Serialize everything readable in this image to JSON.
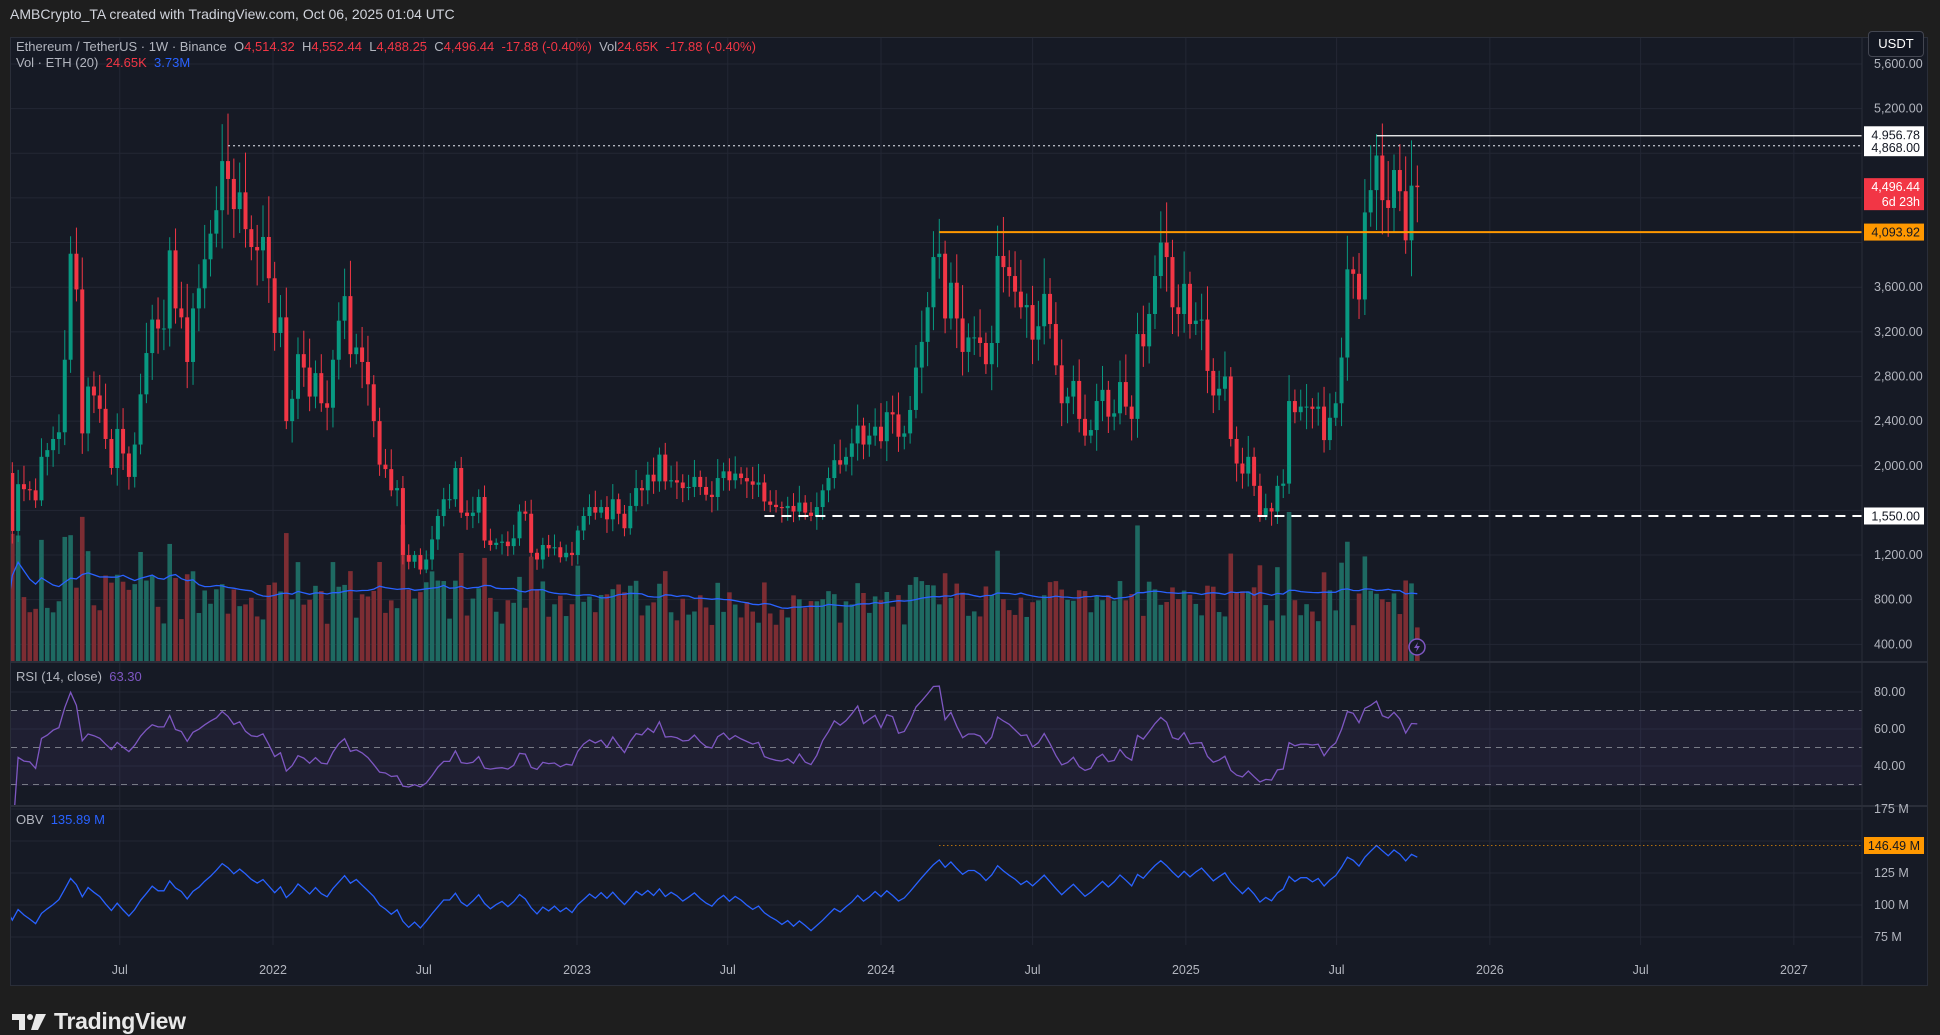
{
  "credit": "AMBCrypto_TA created with TradingView.com, Oct 06, 2025 01:04 UTC",
  "legend": {
    "symbol": "Ethereum / TetherUS · 1W · Binance",
    "o_label": "O",
    "o": "4,514.32",
    "h_label": "H",
    "h": "4,552.44",
    "l_label": "L",
    "l": "4,488.25",
    "c_label": "C",
    "c": "4,496.44",
    "change": "-17.88 (-0.40%)",
    "vol_label": "Vol",
    "vol": "24.65K",
    "vol_change": "-17.88 (-0.40%)",
    "vol_ind": "Vol · ETH (20)",
    "vol_ind_val": "24.65K",
    "vol_ma_val": "3.73M",
    "rsi": "RSI (14, close)",
    "rsi_val": "63.30",
    "obv": "OBV",
    "obv_val": "135.89 M"
  },
  "currency_button": "USDT",
  "brand": "TradingView",
  "colors": {
    "up": "#089981",
    "down": "#f23645",
    "up_vol": "#1e6a62",
    "down_vol": "#7d2d33",
    "vol_ma": "#2962ff",
    "rsi": "#7e57c2",
    "obv": "#2962ff",
    "orange": "#ff9800",
    "bg": "#161a25",
    "grid": "#232734"
  },
  "chart_data": {
    "type": "candlestick",
    "symbol": "ETHUSDT",
    "interval": "1W",
    "exchange": "Binance",
    "start_week": "2021-02-15",
    "closes": [
      1935,
      1416,
      1835,
      1790,
      1780,
      1690,
      2080,
      2140,
      2240,
      2300,
      2950,
      3900,
      3580,
      2290,
      2710,
      2630,
      2510,
      2240,
      1980,
      2330,
      2110,
      1900,
      2190,
      2640,
      3010,
      3310,
      3230,
      3230,
      3930,
      3410,
      3330,
      2930,
      3410,
      3590,
      3850,
      4080,
      4290,
      4730,
      4570,
      4300,
      4450,
      4120,
      3960,
      3930,
      4050,
      3680,
      3190,
      3330,
      2400,
      2600,
      3000,
      2880,
      2620,
      2830,
      2560,
      2520,
      2950,
      3300,
      3520,
      3000,
      3060,
      2930,
      2730,
      2400,
      2010,
      1970,
      1780,
      1800,
      1200,
      1140,
      1200,
      1070,
      1160,
      1340,
      1550,
      1700,
      1700,
      1980,
      1580,
      1550,
      1580,
      1720,
      1330,
      1290,
      1310,
      1320,
      1280,
      1350,
      1590,
      1570,
      1220,
      1160,
      1290,
      1260,
      1270,
      1180,
      1220,
      1200,
      1420,
      1550,
      1630,
      1580,
      1630,
      1520,
      1700,
      1570,
      1440,
      1640,
      1800,
      1780,
      1920,
      1860,
      2100,
      1860,
      1870,
      1850,
      1800,
      1810,
      1900,
      1810,
      1740,
      1720,
      1890,
      1950,
      1870,
      1930,
      1890,
      1860,
      1830,
      1850,
      1680,
      1650,
      1630,
      1620,
      1640,
      1590,
      1670,
      1580,
      1550,
      1630,
      1780,
      1890,
      2050,
      2010,
      2080,
      2200,
      2360,
      2190,
      2270,
      2350,
      2220,
      2480,
      2460,
      2260,
      2290,
      2500,
      2880,
      3110,
      3420,
      3870,
      3900,
      3320,
      3640,
      3320,
      3020,
      3150,
      3150,
      3100,
      2910,
      3100,
      3880,
      3780,
      3700,
      3560,
      3420,
      3440,
      3130,
      3250,
      3540,
      3270,
      2900,
      2560,
      2620,
      2760,
      2420,
      2270,
      2320,
      2580,
      2680,
      2440,
      2470,
      2750,
      2530,
      2420,
      3180,
      3070,
      3360,
      3700,
      4000,
      3870,
      3420,
      3360,
      3630,
      3270,
      3300,
      3310,
      2850,
      2630,
      2690,
      2800,
      2240,
      2020,
      1930,
      2080,
      1820,
      1560,
      1620,
      1590,
      1820,
      1840,
      2580,
      2480,
      2530,
      2530,
      2510,
      2530,
      2230,
      2430,
      2560,
      2970,
      3760,
      3720,
      3490,
      4270,
      4470,
      4780,
      4380,
      4310,
      4650,
      4460,
      4020,
      4510,
      4496.44
    ],
    "price_axis": {
      "min": 400,
      "max": 5600,
      "step": 400,
      "labels": [
        "5,600.00",
        "5,200.00",
        "3,600.00",
        "3,200.00",
        "2,800.00",
        "2,400.00",
        "2,000.00",
        "1,200.00",
        "800.00",
        "400.00"
      ],
      "label_values": [
        5600,
        5200,
        3600,
        3200,
        2800,
        2400,
        2000,
        1200,
        800,
        400
      ]
    },
    "time_axis": {
      "labels": [
        "Jul",
        "2022",
        "Jul",
        "2023",
        "Jul",
        "2024",
        "Jul",
        "2025",
        "Jul",
        "2026",
        "Jul",
        "2027"
      ],
      "dates": [
        "2021-07-01",
        "2022-01-01",
        "2022-07-01",
        "2023-01-01",
        "2023-07-01",
        "2024-01-01",
        "2024-07-01",
        "2025-01-01",
        "2025-07-01",
        "2026-01-01",
        "2026-07-01",
        "2027-01-01"
      ]
    },
    "levels": [
      {
        "name": "ath-high",
        "value": 4956.78,
        "label": "4,956.78",
        "from": "2025-08-18",
        "style": "solid",
        "color": "#ffffff"
      },
      {
        "name": "prev-ath",
        "value": 4868.0,
        "label": "4,868.00",
        "from": "2021-11-08",
        "style": "dotted",
        "color": "#b2b5be"
      },
      {
        "name": "resistance",
        "value": 4093.92,
        "label": "4,093.92",
        "from": "2024-03-11",
        "style": "solid",
        "color": "#ff9800"
      },
      {
        "name": "support",
        "value": 1550.0,
        "label": "1,550.00",
        "from": "2023-08-14",
        "style": "dashed",
        "color": "#ffffff"
      }
    ],
    "last_price": {
      "value": 4496.44,
      "label": "4,496.44",
      "countdown": "6d 23h"
    },
    "rsi": {
      "period": 14,
      "current": 63.3,
      "axis_labels": [
        "80.00",
        "60.00",
        "40.00"
      ],
      "axis_values": [
        80,
        60,
        40
      ],
      "bands": [
        70,
        50,
        30
      ]
    },
    "obv": {
      "current_m": 135.89,
      "level_m": 146.49,
      "level_label": "146.49 M",
      "level_from": "2024-03-11",
      "axis_labels": [
        "175 M",
        "125 M",
        "100 M",
        "75 M"
      ],
      "axis_values": [
        175,
        125,
        100,
        75
      ]
    },
    "volume": {
      "current": "24.65K",
      "ma20": "3.73M"
    }
  }
}
